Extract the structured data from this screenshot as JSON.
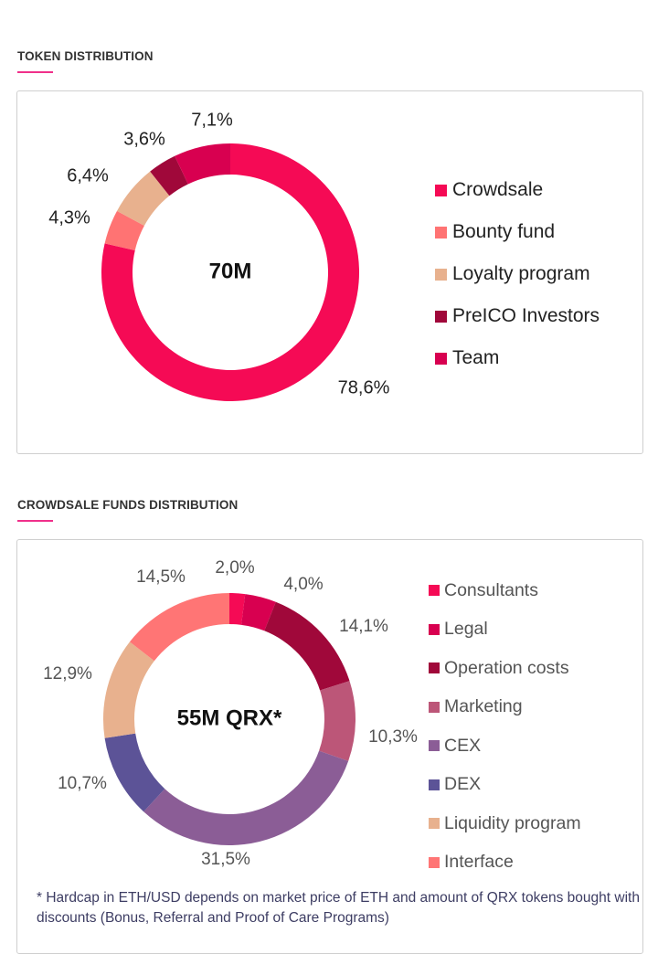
{
  "chart_data": [
    {
      "type": "pie",
      "variant": "donut",
      "title": "TOKEN DISTRIBUTION",
      "center_label": "70M",
      "start": "top-clockwise",
      "legend_position": "right",
      "categories": [
        "Crowdsale",
        "Bounty fund",
        "Loyalty program",
        "PreICO Investors",
        "Team"
      ],
      "values": [
        78.6,
        4.3,
        6.4,
        3.6,
        7.1
      ],
      "labels": [
        "78,6%",
        "4,3%",
        "6,4%",
        "3,6%",
        "7,1%"
      ],
      "colors": [
        "#F50A55",
        "#FF7373",
        "#E8B18E",
        "#A0083A",
        "#D80050"
      ]
    },
    {
      "type": "pie",
      "variant": "donut",
      "title": "CROWDSALE FUNDS DISTRIBUTION",
      "center_label": "55M QRX*",
      "start": "top-clockwise",
      "legend_position": "right",
      "categories": [
        "Consultants",
        "Legal",
        "Operation costs",
        "Marketing",
        "CEX",
        "DEX",
        "Liquidity program",
        "Interface"
      ],
      "values": [
        2.0,
        4.0,
        14.1,
        10.3,
        31.5,
        10.7,
        12.9,
        14.5
      ],
      "labels": [
        "2,0%",
        "4,0%",
        "14,1%",
        "10,3%",
        "31,5%",
        "10,7%",
        "12,9%",
        "14,5%"
      ],
      "colors": [
        "#F50A55",
        "#D80050",
        "#A0083A",
        "#BC5678",
        "#8B5D96",
        "#5C5397",
        "#E8B18E",
        "#FF7575"
      ],
      "footnote": "* Hardcap in ETH/USD depends on market price of ETH and amount of QRX tokens bought with discounts (Bonus, Referral and Proof of Care Programs)"
    }
  ],
  "accent_color": "#F0308A"
}
